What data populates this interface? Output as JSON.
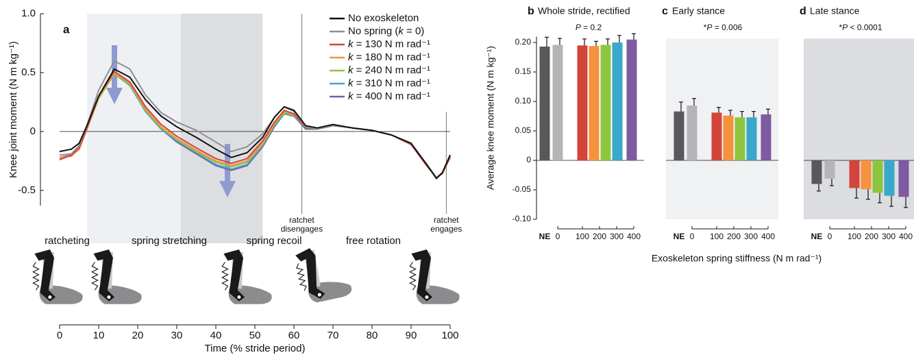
{
  "chart_data": [
    {
      "type": "line",
      "letter": "a",
      "ylabel": "Knee joint moment (N m kg⁻¹)",
      "xlabel": "Time (% stride period)",
      "xlim": [
        0,
        100
      ],
      "xticks": [
        0,
        10,
        20,
        30,
        40,
        50,
        60,
        70,
        80,
        90,
        100
      ],
      "ylim": [
        -0.6,
        1.0
      ],
      "yticks": [
        {
          "value": 1.0,
          "label": "1.0"
        },
        0.5,
        0,
        {
          "value": -0.5,
          "label": "-0.5"
        }
      ],
      "legend": "upper right",
      "shaded_regions": [
        {
          "x": [
            7,
            31
          ],
          "color": "#eef0f4"
        },
        {
          "x": [
            31,
            52
          ],
          "color": "#dcdee2"
        }
      ],
      "annotations": [
        {
          "text": [
            "ratchet",
            "disengages"
          ],
          "x": 62
        },
        {
          "text": [
            "ratchet",
            "engages"
          ],
          "x": 99
        }
      ],
      "phases": [
        "ratcheting",
        "spring stretching",
        "spring recoil",
        "free rotation"
      ],
      "x": [
        0,
        3,
        5,
        7,
        10,
        14,
        18,
        22,
        26,
        30,
        35,
        40,
        44,
        48,
        52,
        55,
        57.5,
        60,
        63,
        66,
        70,
        75,
        80,
        85,
        90,
        94,
        96.5,
        98,
        100
      ],
      "series": [
        {
          "name": "No exoskeleton",
          "color": "#111111",
          "values": [
            -0.17,
            -0.15,
            -0.1,
            0.05,
            0.3,
            0.53,
            0.46,
            0.27,
            0.13,
            0.04,
            -0.05,
            -0.15,
            -0.22,
            -0.18,
            -0.05,
            0.12,
            0.21,
            0.18,
            0.05,
            0.03,
            0.06,
            0.03,
            0.01,
            -0.03,
            -0.1,
            -0.28,
            -0.4,
            -0.35,
            -0.2
          ]
        },
        {
          "name": "No spring (k = 0)",
          "color": "#8f8f92",
          "values": [
            -0.2,
            -0.19,
            -0.12,
            0.05,
            0.35,
            0.6,
            0.53,
            0.31,
            0.16,
            0.08,
            0.01,
            -0.09,
            -0.17,
            -0.13,
            -0.02,
            0.12,
            0.21,
            0.17,
            0.04,
            0.02,
            0.05,
            0.03,
            0.01,
            -0.03,
            -0.1,
            -0.28,
            -0.39,
            -0.35,
            -0.2
          ]
        },
        {
          "name": "k = 130 N m rad⁻¹",
          "color": "#d3443b",
          "values": [
            -0.24,
            -0.2,
            -0.14,
            0.03,
            0.3,
            0.51,
            0.42,
            0.21,
            0.06,
            -0.04,
            -0.14,
            -0.23,
            -0.27,
            -0.23,
            -0.08,
            0.08,
            0.18,
            0.15,
            0.03,
            0.02,
            0.05,
            0.03,
            0.01,
            -0.03,
            -0.11,
            -0.29,
            -0.39,
            -0.35,
            -0.22
          ]
        },
        {
          "name": "k = 180 N m rad⁻¹",
          "color": "#f5923e",
          "values": [
            -0.22,
            -0.21,
            -0.15,
            0.02,
            0.29,
            0.5,
            0.41,
            0.19,
            0.04,
            -0.06,
            -0.16,
            -0.25,
            -0.29,
            -0.25,
            -0.1,
            0.07,
            0.17,
            0.14,
            0.03,
            0.02,
            0.05,
            0.03,
            0.01,
            -0.03,
            -0.11,
            -0.29,
            -0.39,
            -0.36,
            -0.22
          ]
        },
        {
          "name": "k = 240 N m rad⁻¹",
          "color": "#8cc63f",
          "values": [
            -0.23,
            -0.2,
            -0.15,
            0.02,
            0.28,
            0.49,
            0.4,
            0.18,
            0.03,
            -0.07,
            -0.17,
            -0.26,
            -0.3,
            -0.26,
            -0.11,
            0.06,
            0.16,
            0.14,
            0.03,
            0.02,
            0.05,
            0.03,
            0.01,
            -0.03,
            -0.11,
            -0.29,
            -0.39,
            -0.36,
            -0.22
          ]
        },
        {
          "name": "k = 310 N m rad⁻¹",
          "color": "#3aa8c8",
          "values": [
            -0.23,
            -0.2,
            -0.15,
            0.02,
            0.28,
            0.49,
            0.39,
            0.17,
            0.02,
            -0.08,
            -0.18,
            -0.28,
            -0.32,
            -0.28,
            -0.12,
            0.05,
            0.15,
            0.13,
            0.02,
            0.02,
            0.05,
            0.03,
            0.01,
            -0.03,
            -0.11,
            -0.29,
            -0.39,
            -0.36,
            -0.22
          ]
        },
        {
          "name": "k = 400 N m rad⁻¹",
          "color": "#7e5aa3",
          "values": [
            -0.22,
            -0.2,
            -0.15,
            0.02,
            0.29,
            0.5,
            0.4,
            0.17,
            0.02,
            -0.09,
            -0.19,
            -0.29,
            -0.33,
            -0.29,
            -0.13,
            0.04,
            0.15,
            0.13,
            0.02,
            0.02,
            0.05,
            0.03,
            0.01,
            -0.03,
            -0.11,
            -0.29,
            -0.39,
            -0.36,
            -0.21
          ]
        }
      ]
    },
    {
      "type": "bar",
      "letter": "b",
      "title": "Whole stride, rectified",
      "note": "P = 0.2",
      "ylabel": "Average knee moment (N m kg⁻¹)",
      "xlabel": "Exoskeleton spring stiffness (N m rad⁻¹)",
      "ylim": [
        -0.1,
        0.21
      ],
      "yticks": [
        {
          "value": 0.2,
          "label": "0.20"
        },
        {
          "value": 0.15,
          "label": "0.15"
        },
        {
          "value": 0.1,
          "label": "0.10"
        },
        {
          "value": 0.05,
          "label": "0.05"
        },
        0,
        {
          "value": -0.05,
          "label": "-0.05"
        },
        {
          "value": -0.1,
          "label": "-0.10"
        }
      ],
      "x_labels": [
        "NE",
        "0",
        "100",
        "200",
        "300",
        "400"
      ],
      "colors": [
        "#59595c",
        "#b5b5b8",
        "#d3443b",
        "#f5923e",
        "#8cc63f",
        "#3aa8c8",
        "#7e5aa3"
      ],
      "values": [
        0.193,
        0.196,
        0.195,
        0.194,
        0.196,
        0.2,
        0.205
      ],
      "errors": [
        0.016,
        0.011,
        0.011,
        0.008,
        0.01,
        0.012,
        0.01
      ]
    },
    {
      "type": "bar",
      "letter": "c",
      "title": "Early stance",
      "note": "*P = 0.006",
      "background": "#f0f1f3",
      "ylim": [
        -0.1,
        0.21
      ],
      "x_labels": [
        "NE",
        "0",
        "100",
        "200",
        "300",
        "400"
      ],
      "colors": [
        "#59595c",
        "#b5b5b8",
        "#d3443b",
        "#f5923e",
        "#8cc63f",
        "#3aa8c8",
        "#7e5aa3"
      ],
      "values": [
        0.083,
        0.093,
        0.081,
        0.076,
        0.073,
        0.073,
        0.078
      ],
      "errors": [
        0.016,
        0.012,
        0.009,
        0.009,
        0.01,
        0.01,
        0.009
      ]
    },
    {
      "type": "bar",
      "letter": "d",
      "title": "Late stance",
      "note": "*P < 0.0001",
      "background": "#dcdde0",
      "ylim": [
        -0.1,
        0.21
      ],
      "x_labels": [
        "NE",
        "0",
        "100",
        "200",
        "300",
        "400"
      ],
      "colors": [
        "#59595c",
        "#b5b5b8",
        "#d3443b",
        "#f5923e",
        "#8cc63f",
        "#3aa8c8",
        "#7e5aa3"
      ],
      "values": [
        -0.04,
        -0.031,
        -0.047,
        -0.049,
        -0.055,
        -0.06,
        -0.062
      ],
      "errors": [
        0.012,
        0.012,
        0.017,
        0.017,
        0.017,
        0.018,
        0.018
      ]
    }
  ]
}
